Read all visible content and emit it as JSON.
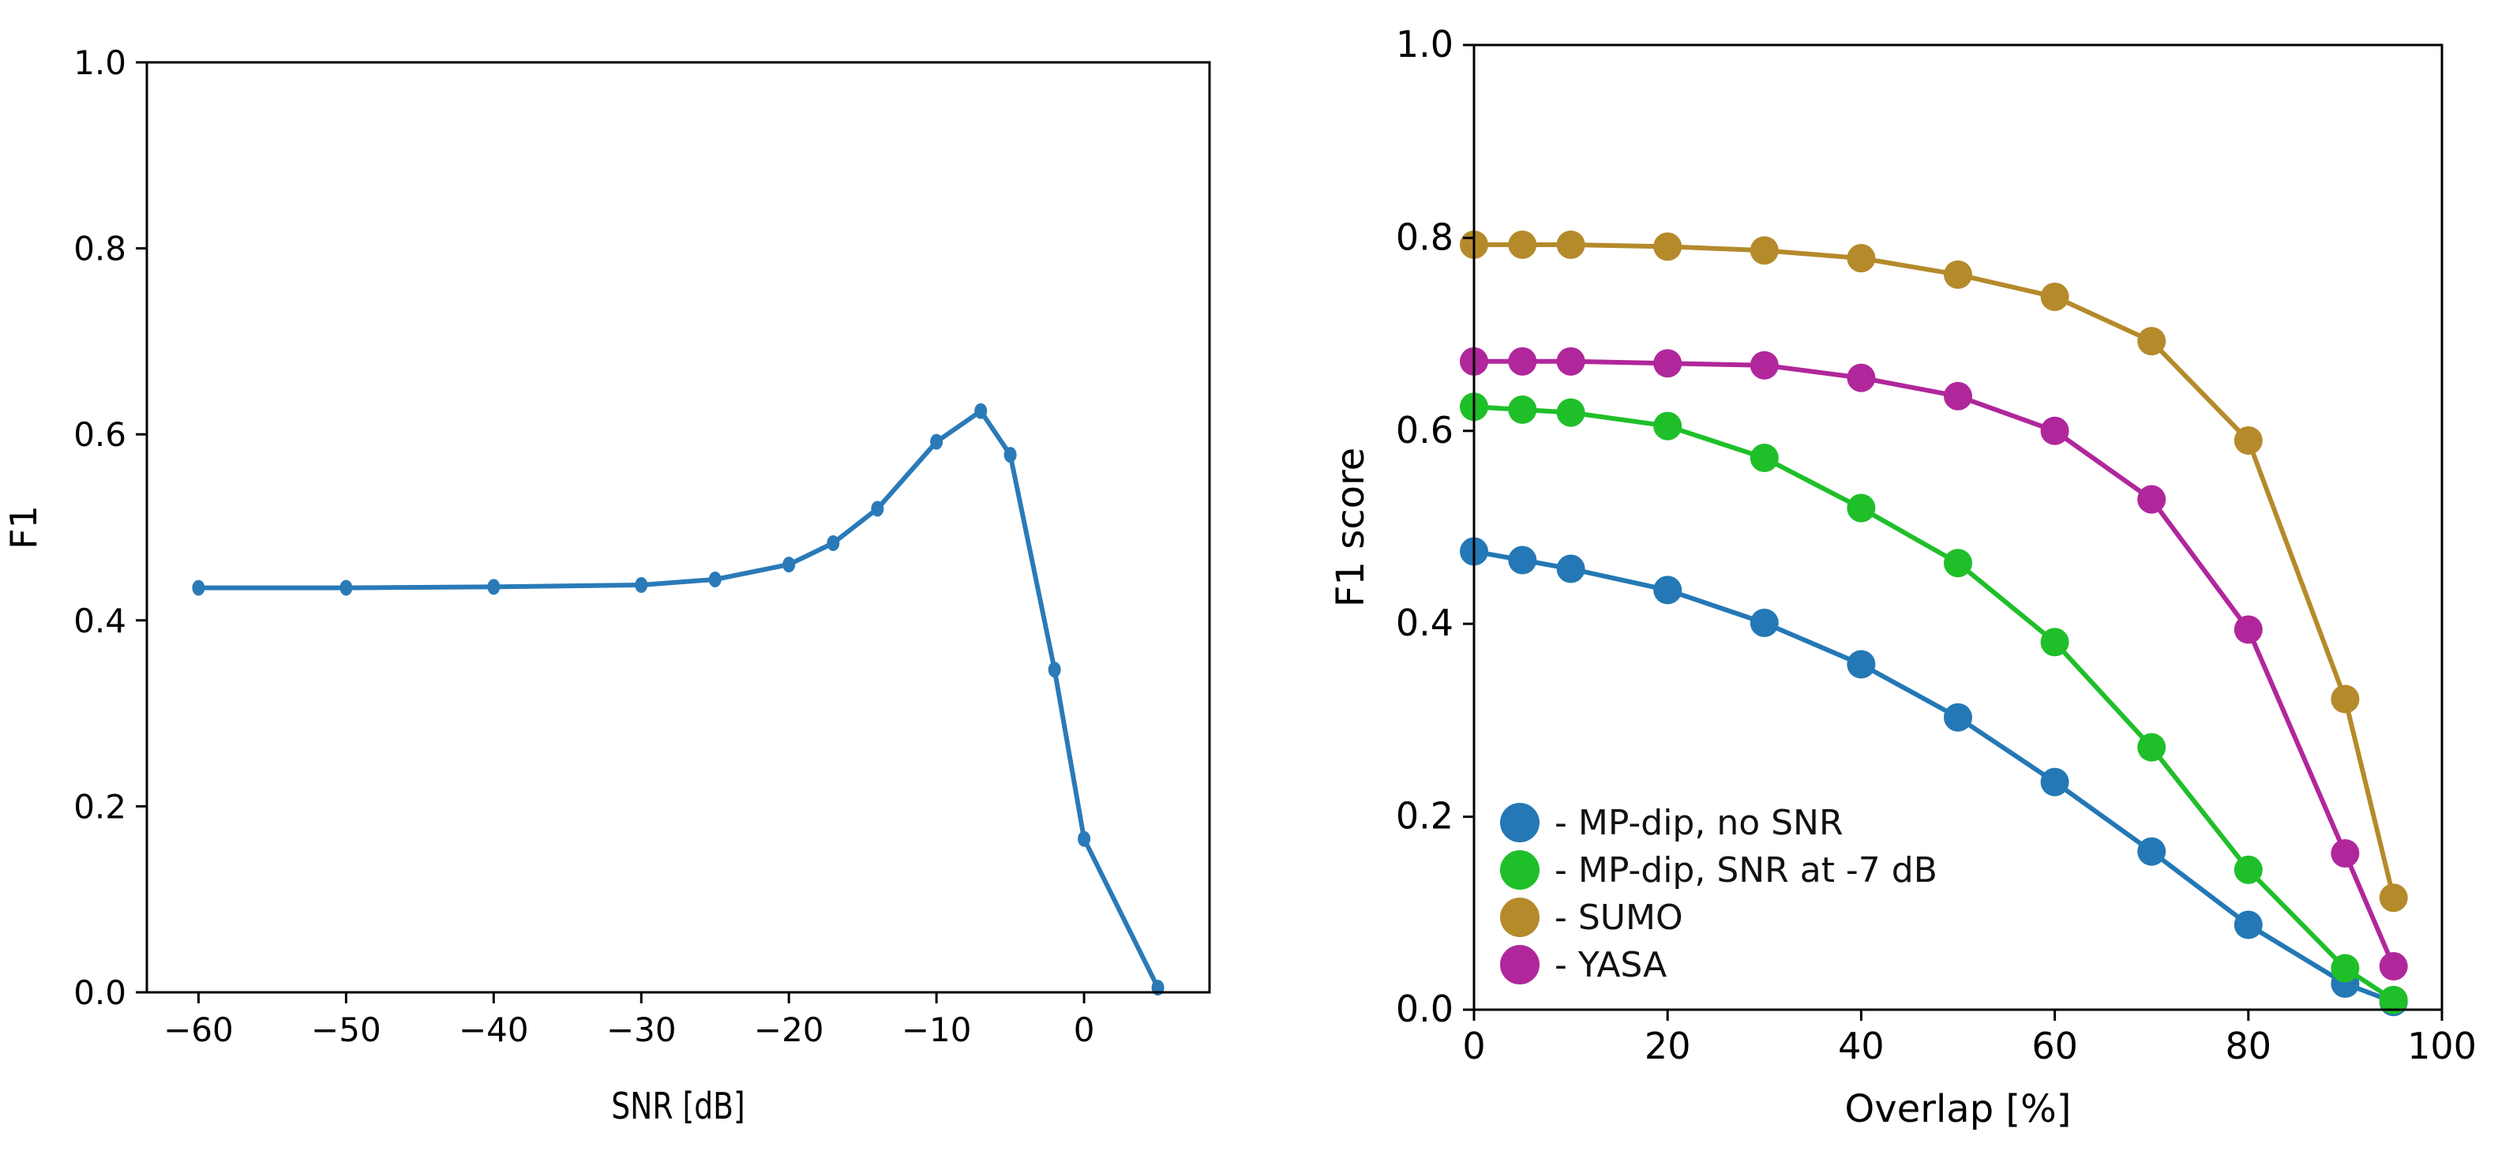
{
  "chart_data": [
    {
      "type": "line",
      "title": "",
      "xlabel": "SNR [dB]",
      "ylabel": "F1",
      "xlim": [
        -63.5,
        8.5
      ],
      "ylim": [
        0.0,
        1.0
      ],
      "xticks": [
        -60,
        -50,
        -40,
        -30,
        -20,
        -10,
        0
      ],
      "xtick_labels": [
        "−60",
        "−50",
        "−40",
        "−30",
        "−20",
        "−10",
        "0"
      ],
      "yticks": [
        0.0,
        0.2,
        0.4,
        0.6,
        0.8,
        1.0
      ],
      "ytick_labels": [
        "0.0",
        "0.2",
        "0.4",
        "0.6",
        "0.8",
        "1.0"
      ],
      "grid": false,
      "series": [
        {
          "color": "#2a7ab8",
          "x": [
            -60,
            -50,
            -40,
            -30,
            -25,
            -20,
            -17,
            -14,
            -10,
            -7,
            -5,
            -2,
            0,
            5
          ],
          "y": [
            0.435,
            0.435,
            0.436,
            0.438,
            0.444,
            0.46,
            0.483,
            0.52,
            0.592,
            0.625,
            0.578,
            0.347,
            0.165,
            0.005
          ]
        }
      ]
    },
    {
      "type": "line",
      "title": "",
      "xlabel": "Overlap [%]",
      "ylabel": "F1 score",
      "xlim": [
        0,
        100
      ],
      "ylim": [
        0.0,
        1.0
      ],
      "xticks": [
        0,
        20,
        40,
        60,
        80,
        100
      ],
      "xtick_labels": [
        "0",
        "20",
        "40",
        "60",
        "80",
        "100"
      ],
      "yticks": [
        0.0,
        0.2,
        0.4,
        0.6,
        0.8,
        1.0
      ],
      "ytick_labels": [
        "0.0",
        "0.2",
        "0.4",
        "0.6",
        "0.8",
        "1.0"
      ],
      "grid": false,
      "legend_position": "lower-left",
      "x": [
        0,
        5,
        10,
        20,
        30,
        40,
        50,
        60,
        70,
        80,
        90,
        95
      ],
      "series": [
        {
          "name": "- MP-dip, no SNR",
          "color": "#2378b5",
          "values": [
            0.475,
            0.466,
            0.457,
            0.435,
            0.401,
            0.358,
            0.303,
            0.236,
            0.164,
            0.088,
            0.027,
            0.008
          ]
        },
        {
          "name": "- MP-dip, SNR at -7 dB",
          "color": "#1fbf2a",
          "values": [
            0.625,
            0.622,
            0.619,
            0.605,
            0.572,
            0.52,
            0.463,
            0.381,
            0.272,
            0.145,
            0.043,
            0.01
          ]
        },
        {
          "name": "- SUMO",
          "color": "#b58a2b",
          "values": [
            0.793,
            0.793,
            0.793,
            0.791,
            0.787,
            0.779,
            0.762,
            0.739,
            0.693,
            0.59,
            0.322,
            0.116
          ]
        },
        {
          "name": "- YASA",
          "color": "#b0279b",
          "values": [
            0.672,
            0.672,
            0.672,
            0.67,
            0.668,
            0.655,
            0.636,
            0.6,
            0.529,
            0.394,
            0.162,
            0.045
          ]
        }
      ]
    }
  ]
}
